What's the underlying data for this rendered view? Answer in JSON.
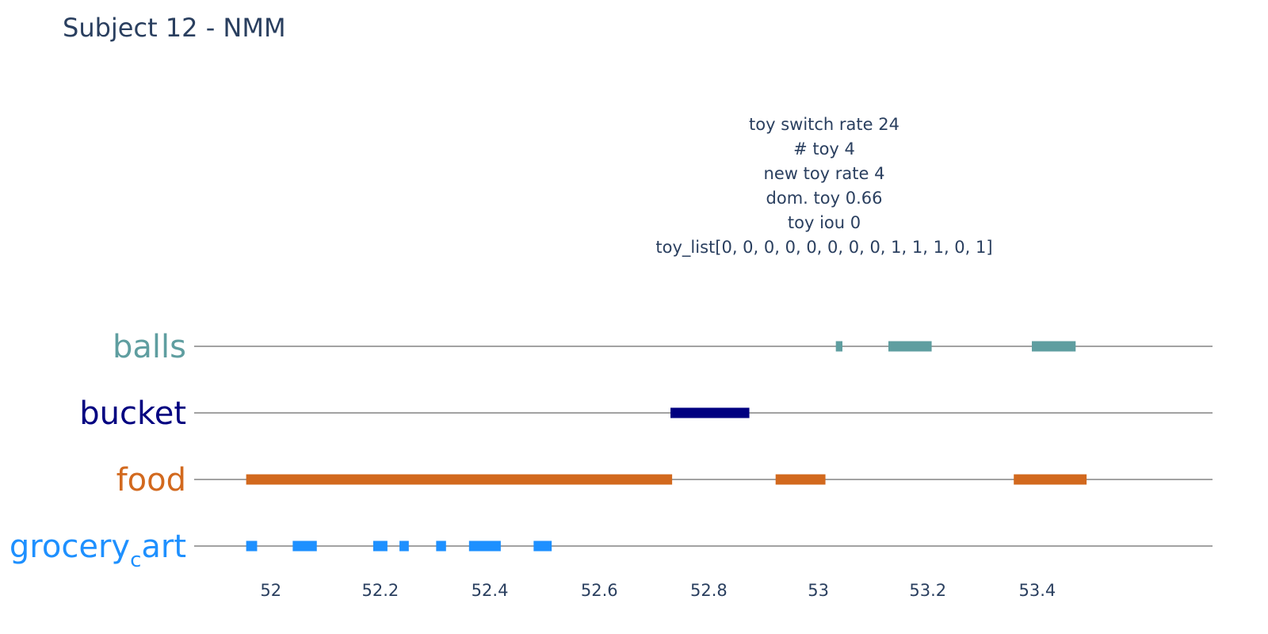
{
  "chart_data": {
    "type": "timeline",
    "title": "Subject 12 - NMM",
    "annotation": [
      "toy switch rate 24",
      "# toy 4",
      "new toy rate 4",
      "dom. toy 0.66",
      "toy iou 0",
      "toy_list[0, 0, 0, 0, 0, 0, 0, 0, 1, 1, 1, 0, 1]"
    ],
    "xlim": [
      51.86,
      53.72
    ],
    "x_ticks": [
      52,
      52.2,
      52.4,
      52.6,
      52.8,
      53,
      53.2,
      53.4
    ],
    "x_tick_labels": [
      "52",
      "52.2",
      "52.4",
      "52.6",
      "52.8",
      "53",
      "53.2",
      "53.4"
    ],
    "grid": false,
    "categories": [
      {
        "name": "balls",
        "label": "balls",
        "color": "#5f9ea0",
        "intervals": [
          [
            53.032,
            53.044
          ],
          [
            53.128,
            53.207
          ],
          [
            53.39,
            53.47
          ]
        ]
      },
      {
        "name": "bucket",
        "label": "bucket",
        "color": "#000080",
        "intervals": [
          [
            52.73,
            52.874
          ]
        ]
      },
      {
        "name": "food",
        "label": "food",
        "color": "#d2691e",
        "intervals": [
          [
            51.955,
            52.733
          ],
          [
            52.922,
            53.013
          ],
          [
            53.357,
            53.49
          ]
        ]
      },
      {
        "name": "grocery_cart",
        "label": "grocery",
        "label_subscript": "c",
        "label_suffix": "art",
        "color": "#1e90ff",
        "intervals": [
          [
            51.955,
            51.975
          ],
          [
            52.04,
            52.084
          ],
          [
            52.187,
            52.213
          ],
          [
            52.235,
            52.252
          ],
          [
            52.302,
            52.32
          ],
          [
            52.362,
            52.42
          ],
          [
            52.48,
            52.513
          ]
        ]
      }
    ]
  }
}
